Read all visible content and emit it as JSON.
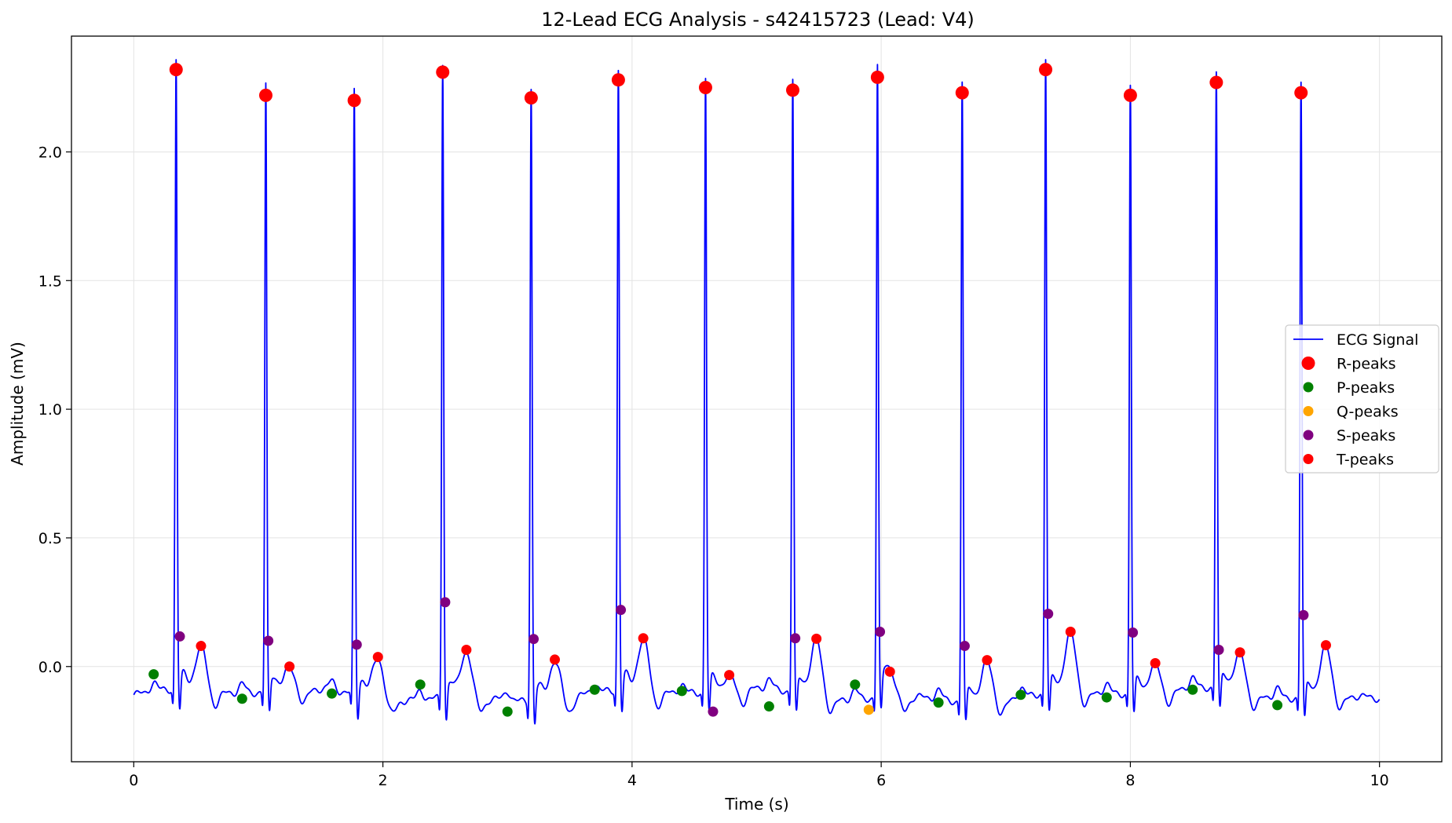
{
  "chart_data": {
    "type": "line",
    "title": "12-Lead ECG Analysis - s42415723 (Lead: V4)",
    "xlabel": "Time (s)",
    "ylabel": "Amplitude (mV)",
    "xlim": [
      -0.5,
      10.5
    ],
    "ylim": [
      -0.37,
      2.45
    ],
    "x_ticks": [
      0,
      2,
      4,
      6,
      8,
      10
    ],
    "x_tick_labels": [
      "0",
      "2",
      "4",
      "6",
      "8",
      "10"
    ],
    "y_ticks": [
      0.0,
      0.5,
      1.0,
      1.5,
      2.0
    ],
    "y_tick_labels": [
      "0.0",
      "0.5",
      "1.0",
      "1.5",
      "2.0"
    ],
    "grid": true,
    "legend_position": "center-right",
    "legend": [
      {
        "label": "ECG Signal",
        "kind": "line",
        "color": "#0000ff"
      },
      {
        "label": "R-peaks",
        "kind": "marker-large",
        "color": "#ff0000"
      },
      {
        "label": "P-peaks",
        "kind": "marker",
        "color": "#008000"
      },
      {
        "label": "Q-peaks",
        "kind": "marker",
        "color": "#ffa500"
      },
      {
        "label": "S-peaks",
        "kind": "marker",
        "color": "#800080"
      },
      {
        "label": "T-peaks",
        "kind": "marker",
        "color": "#ff0000"
      }
    ],
    "series": [
      {
        "name": "ECG Signal",
        "color": "#0000ff",
        "kind": "line",
        "beat_times": [
          0.34,
          1.06,
          1.77,
          2.48,
          3.19,
          3.89,
          4.59,
          5.29,
          5.97,
          6.65,
          7.32,
          8.0,
          8.69,
          9.37
        ],
        "r_amplitudes": [
          2.32,
          2.22,
          2.2,
          2.31,
          2.21,
          2.28,
          2.25,
          2.24,
          2.29,
          2.23,
          2.32,
          2.22,
          2.27,
          2.23
        ],
        "x_range": [
          0,
          10
        ]
      },
      {
        "name": "R-peaks",
        "color": "#ff0000",
        "kind": "marker-large",
        "x": [
          0.34,
          1.06,
          1.77,
          2.48,
          3.19,
          3.89,
          4.59,
          5.29,
          5.97,
          6.65,
          7.32,
          8.0,
          8.69,
          9.37
        ],
        "y": [
          2.32,
          2.22,
          2.2,
          2.31,
          2.21,
          2.28,
          2.25,
          2.24,
          2.29,
          2.23,
          2.32,
          2.22,
          2.27,
          2.23
        ]
      },
      {
        "name": "P-peaks",
        "color": "#008000",
        "kind": "marker",
        "x": [
          0.16,
          0.87,
          1.59,
          2.3,
          3.0,
          3.7,
          4.4,
          5.1,
          5.79,
          6.46,
          7.12,
          7.81,
          8.5,
          9.18
        ],
        "y": [
          -0.03,
          -0.125,
          -0.105,
          -0.07,
          -0.175,
          -0.09,
          -0.095,
          -0.155,
          -0.07,
          -0.14,
          -0.11,
          -0.12,
          -0.09,
          -0.15
        ]
      },
      {
        "name": "Q-peaks",
        "color": "#ffa500",
        "kind": "marker",
        "x": [
          5.9
        ],
        "y": [
          -0.168
        ]
      },
      {
        "name": "S-peaks",
        "color": "#800080",
        "kind": "marker",
        "x": [
          0.37,
          1.08,
          1.79,
          2.5,
          3.21,
          3.91,
          4.65,
          5.31,
          5.99,
          6.67,
          7.34,
          8.02,
          8.71,
          9.39
        ],
        "y": [
          0.117,
          0.1,
          0.085,
          0.25,
          0.107,
          0.22,
          -0.175,
          0.11,
          0.135,
          0.08,
          0.205,
          0.132,
          0.065,
          0.2
        ]
      },
      {
        "name": "T-peaks",
        "color": "#ff0000",
        "kind": "marker",
        "x": [
          0.54,
          1.25,
          1.96,
          2.67,
          3.38,
          4.09,
          4.78,
          5.48,
          6.07,
          6.85,
          7.52,
          8.2,
          8.88,
          9.57
        ],
        "y": [
          0.08,
          0.0,
          0.037,
          0.065,
          0.027,
          0.11,
          -0.033,
          0.108,
          -0.02,
          0.025,
          0.135,
          0.013,
          0.055,
          0.083
        ]
      }
    ]
  }
}
